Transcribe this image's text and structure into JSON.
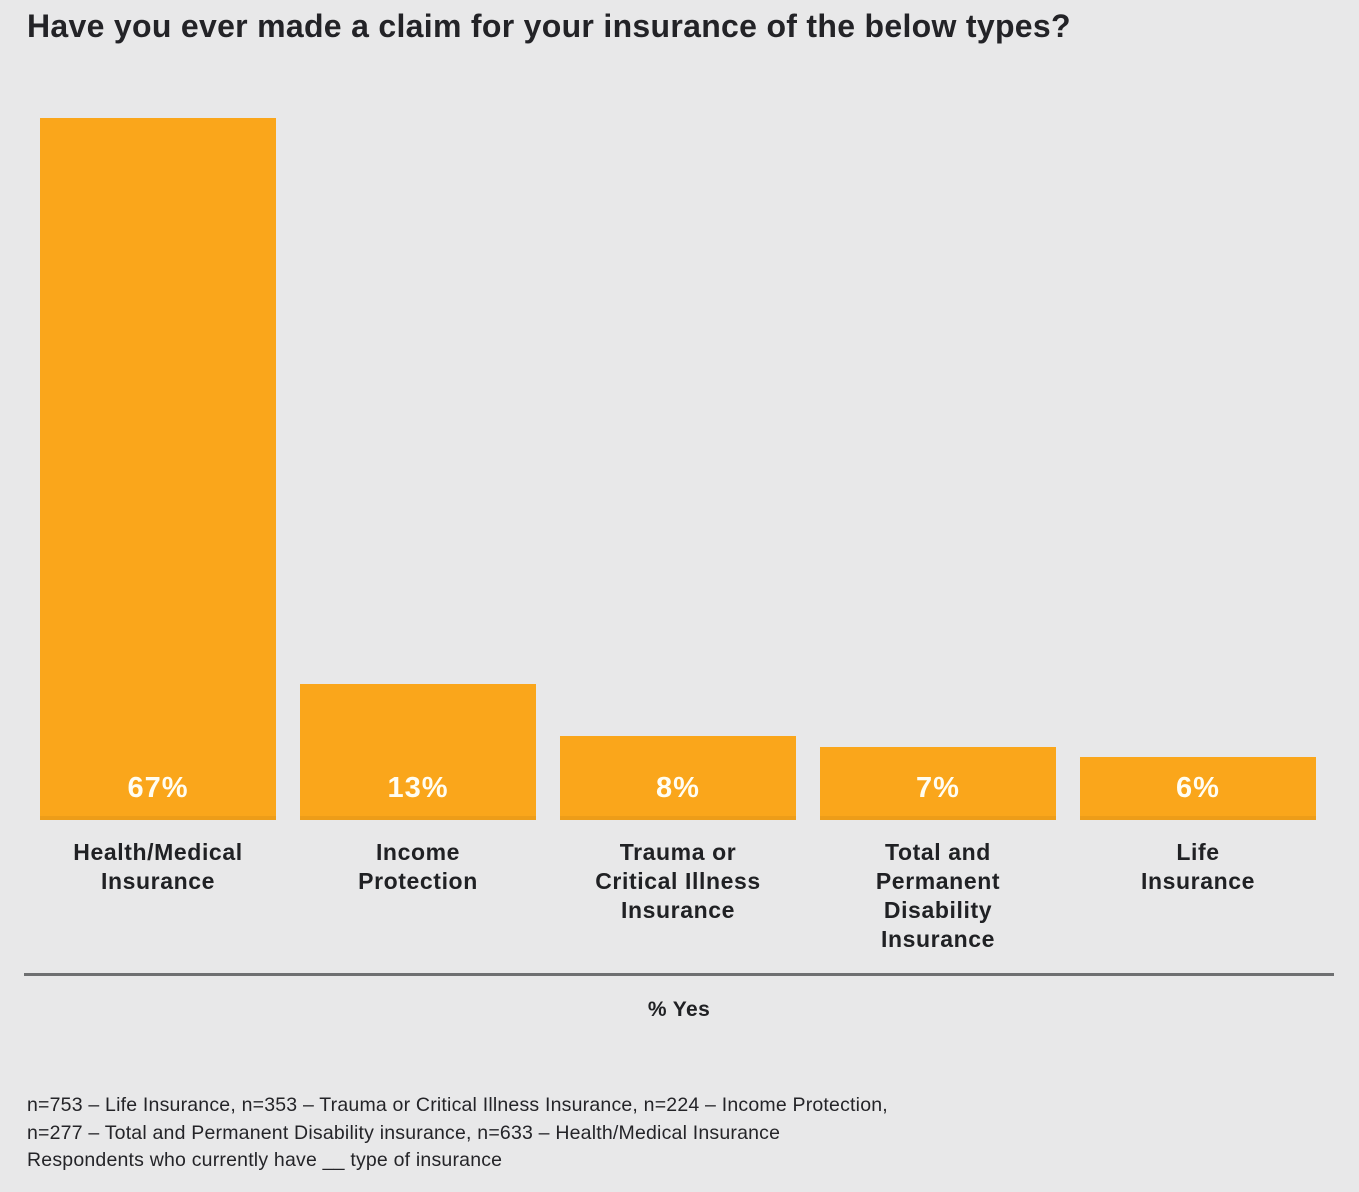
{
  "title": "Have you ever made a claim for your insurance of the below types?",
  "colors": {
    "background": "#e8e8e9",
    "bar": "#faa61b",
    "bar_value_text": "#fffdf2",
    "text": "#202124",
    "divider": "#6e6f71"
  },
  "chart_data": {
    "type": "bar",
    "title": "Have you ever made a claim for your insurance of the below types?",
    "categories": [
      "Health/Medical\nInsurance",
      "Income\nProtection",
      "Trauma or\nCritical Illness\nInsurance",
      "Total and\nPermanent\nDisability\nInsurance",
      "Life\nInsurance"
    ],
    "values": [
      67,
      13,
      8,
      7,
      6
    ],
    "value_labels": [
      "67%",
      "13%",
      "8%",
      "7%",
      "6%"
    ],
    "xlabel": "% Yes",
    "ylabel": "",
    "ylim": [
      0,
      67
    ],
    "grid": false,
    "legend": "none",
    "bar_color": "#faa61b"
  },
  "footnote": {
    "lines": [
      "n=753 – Life Insurance, n=353 – Trauma or Critical Illness Insurance, n=224 – Income Protection,",
      "n=277 – Total and Permanent Disability insurance, n=633 – Health/Medical Insurance",
      "Respondents who currently have __ type of insurance"
    ]
  }
}
